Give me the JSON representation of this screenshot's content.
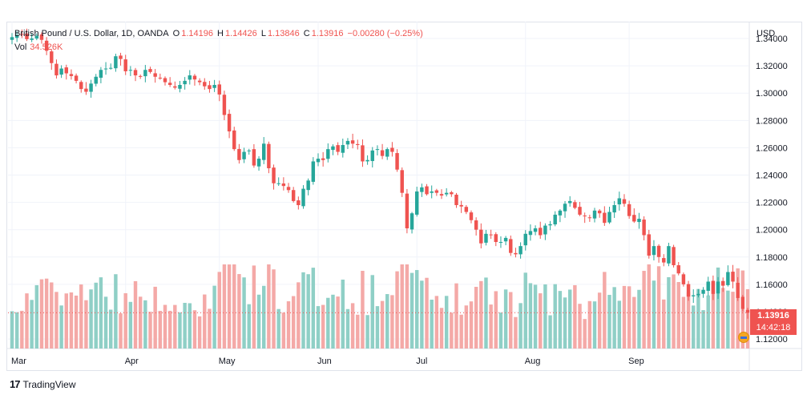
{
  "header": {
    "symbol": "British Pound / U.S. Dollar, 1D, OANDA",
    "o_label": "O",
    "o_value": "1.14196",
    "h_label": "H",
    "h_value": "1.14426",
    "l_label": "L",
    "l_value": "1.13846",
    "c_label": "C",
    "c_value": "1.13916",
    "change": "−0.00280 (−0.25%)",
    "vol_label": "Vol",
    "vol_value": "34.526K"
  },
  "currency": "USD",
  "last_price": {
    "value": "1.13916",
    "countdown": "14:42:18"
  },
  "brand": {
    "logo": "17",
    "name": "TradingView"
  },
  "colors": {
    "up": "#26a69a",
    "down": "#ef5350",
    "up_vol": "#8fcfc6",
    "down_vol": "#f4a9a7"
  },
  "chart_data": {
    "type": "candlestick",
    "ylim": [
      1.113,
      1.35
    ],
    "y_ticks": [
      "1.34000",
      "1.32000",
      "1.30000",
      "1.28000",
      "1.26000",
      "1.24000",
      "1.22000",
      "1.20000",
      "1.18000",
      "1.16000",
      "1.14000",
      "1.12000"
    ],
    "x_ticks": [
      "Mar",
      "Apr",
      "May",
      "Jun",
      "Jul",
      "Aug",
      "Sep"
    ],
    "x_tick_index": [
      0,
      23,
      42,
      62,
      82,
      104,
      125
    ],
    "grid": true,
    "closes": [
      1.341,
      1.3425,
      1.343,
      1.3395,
      1.34,
      1.342,
      1.339,
      1.331,
      1.322,
      1.313,
      1.318,
      1.3145,
      1.3125,
      1.309,
      1.303,
      1.301,
      1.307,
      1.312,
      1.317,
      1.318,
      1.3185,
      1.327,
      1.325,
      1.316,
      1.317,
      1.313,
      1.312,
      1.317,
      1.3155,
      1.312,
      1.311,
      1.308,
      1.306,
      1.304,
      1.306,
      1.309,
      1.313,
      1.31,
      1.308,
      1.305,
      1.303,
      1.306,
      1.299,
      1.284,
      1.272,
      1.259,
      1.251,
      1.257,
      1.258,
      1.247,
      1.252,
      1.263,
      1.245,
      1.234,
      1.234,
      1.232,
      1.229,
      1.221,
      1.218,
      1.23,
      1.236,
      1.25,
      1.252,
      1.251,
      1.259,
      1.261,
      1.257,
      1.262,
      1.265,
      1.263,
      1.262,
      1.25,
      1.251,
      1.258,
      1.259,
      1.254,
      1.259,
      1.257,
      1.244,
      1.227,
      1.201,
      1.212,
      1.228,
      1.231,
      1.226,
      1.228,
      1.227,
      1.225,
      1.227,
      1.226,
      1.218,
      1.217,
      1.213,
      1.207,
      1.2,
      1.19,
      1.197,
      1.196,
      1.191,
      1.191,
      1.194,
      1.183,
      1.182,
      1.188,
      1.197,
      1.199,
      1.201,
      1.196,
      1.203,
      1.204,
      1.211,
      1.214,
      1.219,
      1.221,
      1.216,
      1.211,
      1.21,
      1.209,
      1.214,
      1.212,
      1.205,
      1.213,
      1.218,
      1.223,
      1.219,
      1.21,
      1.206,
      1.208,
      1.196,
      1.181,
      1.188,
      1.18,
      1.176,
      1.188,
      1.174,
      1.168,
      1.16,
      1.151,
      1.152,
      1.153,
      1.156,
      1.162,
      1.153,
      1.162,
      1.159,
      1.169,
      1.162,
      1.15,
      1.142,
      1.1392
    ],
    "volume_ylim": [
      0,
      120
    ]
  }
}
